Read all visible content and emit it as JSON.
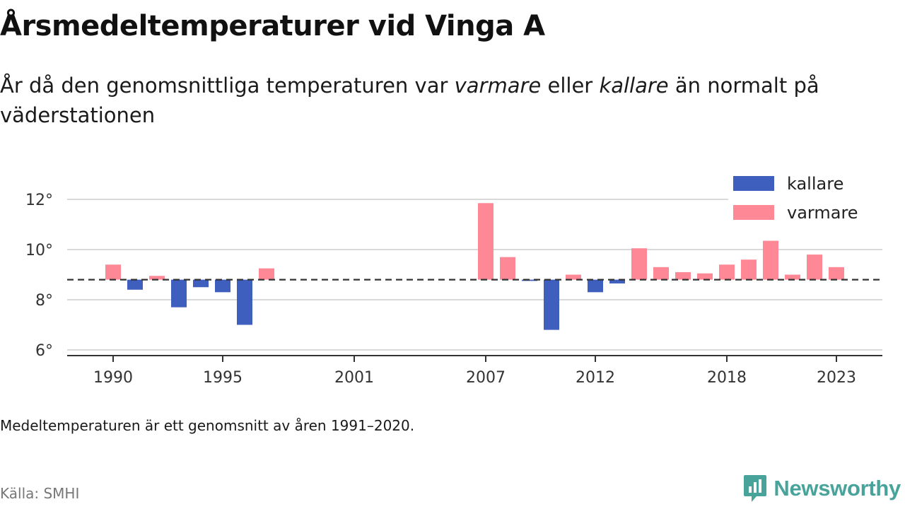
{
  "title": "Årsmedeltemperaturer vid Vinga A",
  "subtitle": {
    "part1": "År då den genomsnittliga temperaturen var ",
    "emph1": "varmare",
    "part2": " eller ",
    "emph2": "kallare",
    "part3": " än normalt på väderstationen"
  },
  "note": "Medeltemperaturen är ett genomsnitt av åren 1991–2020.",
  "source": "Källa: SMHI",
  "logo": {
    "text": "Newsworthy",
    "icon": "newsworthy-logo-icon",
    "color": "#48a39a"
  },
  "colors": {
    "kallare": "#3f5fbf",
    "varmare": "#ff8896"
  },
  "chart_data": {
    "type": "bar",
    "baseline": 8.8,
    "baseline_style": "dashed",
    "ylim": [
      5.5,
      12.5
    ],
    "yticks": [
      6,
      8,
      10,
      12
    ],
    "ytick_labels": [
      "6°",
      "8°",
      "10°",
      "12°"
    ],
    "xticks": [
      1990,
      1995,
      2001,
      2007,
      2012,
      2018,
      2023
    ],
    "xtick_labels": [
      "1990",
      "1995",
      "2001",
      "2007",
      "2012",
      "2018",
      "2023"
    ],
    "grid": true,
    "legend_position": "top-right",
    "legend": [
      {
        "key": "kallare",
        "label": "kallare"
      },
      {
        "key": "varmare",
        "label": "varmare"
      }
    ],
    "x": [
      1990,
      1991,
      1992,
      1993,
      1994,
      1995,
      1996,
      1997,
      2007,
      2008,
      2009,
      2010,
      2011,
      2012,
      2013,
      2014,
      2015,
      2016,
      2017,
      2018,
      2019,
      2020,
      2021,
      2022,
      2023
    ],
    "values": [
      9.4,
      8.4,
      8.95,
      7.7,
      8.5,
      8.3,
      7.0,
      9.25,
      11.85,
      9.7,
      8.75,
      6.8,
      9.0,
      8.3,
      8.65,
      10.05,
      9.3,
      9.1,
      9.05,
      9.4,
      9.6,
      10.35,
      9.0,
      9.8,
      9.3
    ]
  }
}
